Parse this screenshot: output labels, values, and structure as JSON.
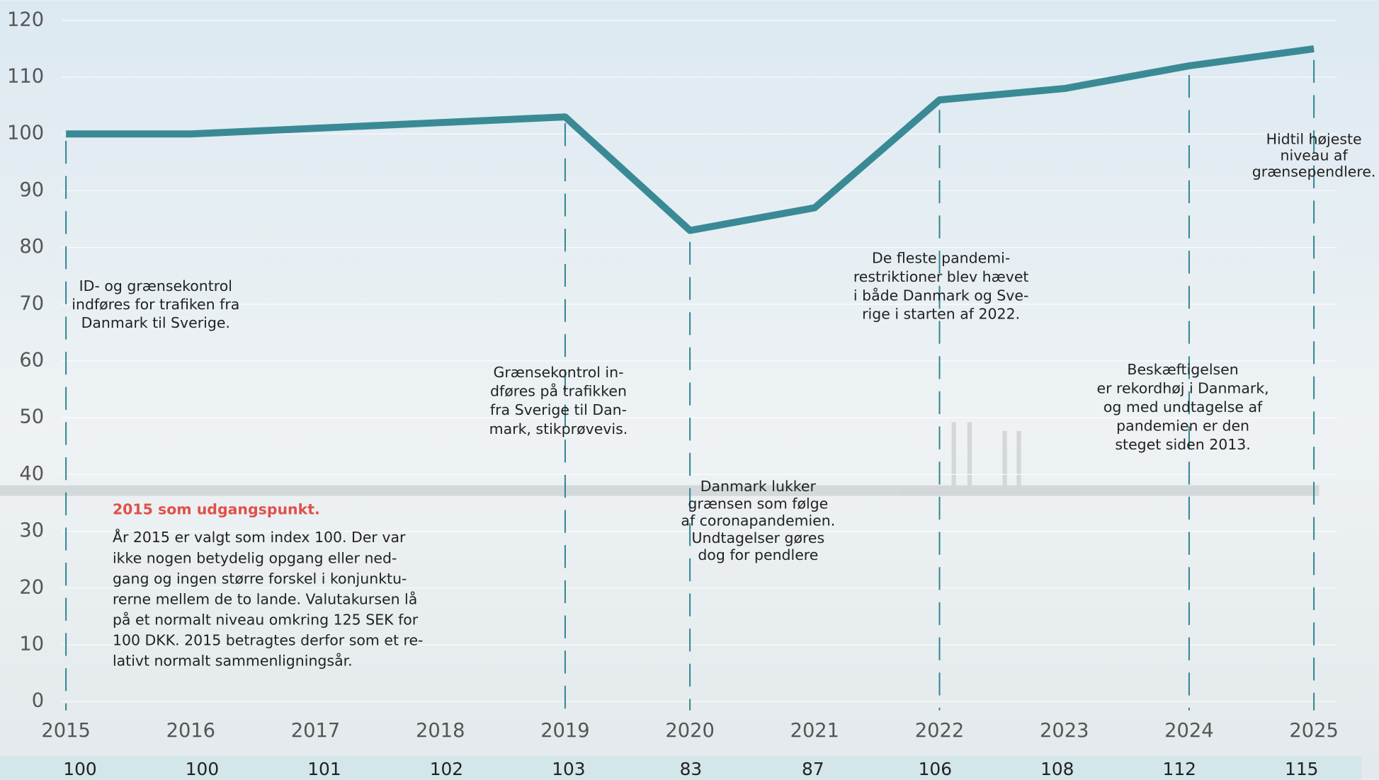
{
  "chart_data": {
    "type": "line",
    "x": [
      "2015",
      "2016",
      "2017",
      "2018",
      "2019",
      "2020",
      "2021",
      "2022",
      "2023",
      "2024",
      "2025"
    ],
    "series": [
      {
        "color": "#3a8a96",
        "values": [
          100,
          100,
          101,
          102,
          103,
          83,
          87,
          106,
          108,
          112,
          115
        ]
      }
    ],
    "ylim": [
      0,
      120
    ],
    "yticks": [
      0,
      10,
      20,
      30,
      40,
      50,
      60,
      70,
      80,
      90,
      100,
      110,
      120
    ],
    "grid": true,
    "annotations": [
      [
        "ID- og grænsekontrol",
        "indføres for trafiken fra",
        "Danmark til Sverige."
      ],
      [
        "Grænsekontrol in-",
        "dføres på trafikken",
        "fra Sverige til Dan-",
        "mark, stikprøvevis."
      ],
      [
        "Danmark lukker",
        "grænsen som følge",
        "af coronapandemien.",
        "Undtagelser gøres",
        "dog for pendlere"
      ],
      [
        "De fleste pandemi-",
        "restriktioner blev hævet",
        "i både Danmark og Sve-",
        "rige i starten af 2022."
      ],
      [
        "Beskæftigelsen",
        "er rekordhøj i Danmark,",
        "og med undtagelse af",
        "pandemien er den",
        "steget siden 2013."
      ],
      [
        "Hidtil højeste",
        "niveau af",
        "grænsependlere."
      ]
    ],
    "note": {
      "title": "2015 som udgangspunkt.",
      "lines": [
        "År 2015 er valgt som index 100. Der var",
        "ikke nogen betydelig opgang eller ned-",
        "gang og ingen større forskel i konjunktu-",
        "rerne mellem de to lande. Valutakursen lå",
        "på et normalt niveau omkring 125 SEK for",
        "100 DKK. 2015 betragtes derfor som et re-",
        "lativt normalt sammenligningsår."
      ]
    }
  }
}
